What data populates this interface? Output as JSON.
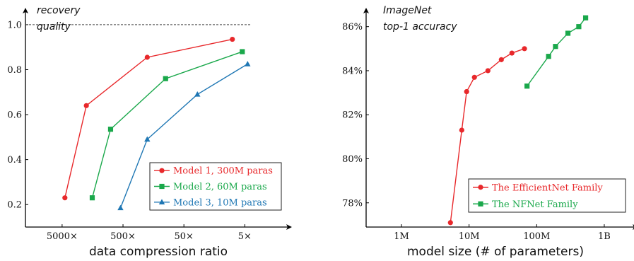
{
  "chart_data": [
    {
      "type": "line",
      "ylabel": "recovery quality",
      "ylabel_lines": [
        "recovery",
        "quality"
      ],
      "xlabel": "data compression ratio",
      "x_scale": "log",
      "x_reversed": true,
      "x_ticks": [
        5000,
        500,
        50,
        5
      ],
      "x_tick_labels": [
        "5000×",
        "500×",
        "50×",
        "5×"
      ],
      "y_ticks": [
        0.2,
        0.4,
        0.6,
        0.8,
        1.0
      ],
      "y_tick_labels": [
        "0.2",
        "0.4",
        "0.6",
        "0.8",
        "1.0"
      ],
      "ylim": [
        0.1,
        1.05
      ],
      "reference_line": 1.0,
      "grid": false,
      "legend_position": "bottom-right",
      "series": [
        {
          "name": "Model 1, 300M paras",
          "color": "#e8282b",
          "marker": "circle",
          "x": [
            4500,
            2000,
            200,
            8
          ],
          "y": [
            0.23,
            0.64,
            0.855,
            0.935
          ]
        },
        {
          "name": "Model 2, 60M paras",
          "color": "#1aa84b",
          "marker": "square",
          "x": [
            1600,
            800,
            100,
            5.5
          ],
          "y": [
            0.23,
            0.535,
            0.76,
            0.88
          ]
        },
        {
          "name": "Model 3, 10M paras",
          "color": "#1f77b4",
          "marker": "triangle",
          "x": [
            550,
            200,
            30,
            4.5
          ],
          "y": [
            0.185,
            0.49,
            0.69,
            0.825
          ]
        }
      ]
    },
    {
      "type": "line",
      "ylabel": "ImageNet top-1 accuracy",
      "ylabel_lines": [
        "ImageNet",
        "top-1 accuracy"
      ],
      "xlabel": "model size (# of parameters)",
      "x_scale": "log",
      "x_ticks": [
        1000000,
        10000000,
        100000000,
        1000000000
      ],
      "x_tick_labels": [
        "1M",
        "10M",
        "100M",
        "1B"
      ],
      "y_ticks": [
        78,
        80,
        82,
        84,
        86
      ],
      "y_tick_labels": [
        "78%",
        "80%",
        "82%",
        "84%",
        "86%"
      ],
      "ylim": [
        76.9,
        86.6
      ],
      "grid": false,
      "legend_position": "bottom-right",
      "series": [
        {
          "name": "The EfficientNet Family",
          "color": "#e8282b",
          "marker": "circle",
          "x": [
            5300000,
            7800000,
            9200000,
            12000000,
            19000000,
            30000000,
            43000000,
            66000000
          ],
          "y": [
            77.1,
            81.3,
            83.05,
            83.7,
            84.0,
            84.5,
            84.8,
            85.0
          ]
        },
        {
          "name": "The NFNet Family",
          "color": "#1aa84b",
          "marker": "square",
          "x": [
            72000000,
            150000000,
            190000000,
            290000000,
            420000000,
            530000000
          ],
          "y": [
            83.3,
            84.65,
            85.1,
            85.7,
            86.0,
            86.4
          ]
        }
      ]
    }
  ]
}
